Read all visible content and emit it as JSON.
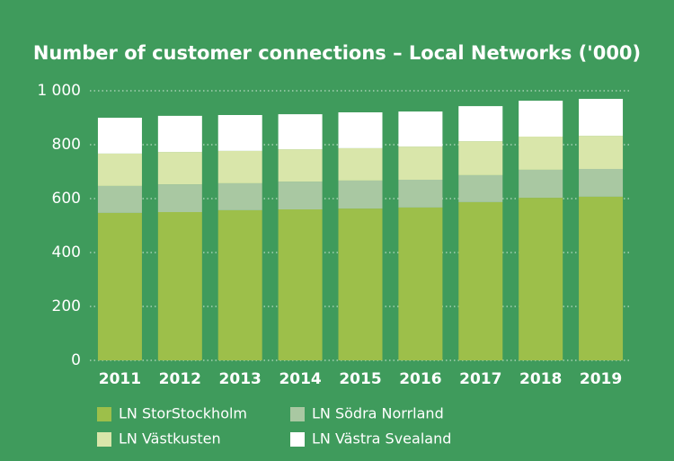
{
  "chart_data": {
    "type": "stacked_bar",
    "title": "Number of customer connections – Local Networks ('000)",
    "categories": [
      "2011",
      "2012",
      "2013",
      "2014",
      "2015",
      "2016",
      "2017",
      "2018",
      "2019"
    ],
    "series": [
      {
        "name": "LN StorStockholm",
        "color": "#9dbf4a",
        "values": [
          547,
          550,
          557,
          560,
          563,
          567,
          587,
          603,
          607
        ]
      },
      {
        "name": "LN Södra Norrland",
        "color": "#a9c8a2",
        "values": [
          100,
          103,
          100,
          103,
          104,
          103,
          100,
          104,
          103
        ]
      },
      {
        "name": "LN Västkusten",
        "color": "#d9e6aa",
        "values": [
          120,
          120,
          120,
          120,
          120,
          123,
          126,
          123,
          123
        ]
      },
      {
        "name": "LN Västra Svealand",
        "color": "#ffffff",
        "values": [
          133,
          134,
          133,
          130,
          133,
          130,
          130,
          133,
          137
        ]
      }
    ],
    "ylim": [
      0,
      1000
    ],
    "yticks": [
      0,
      200,
      400,
      600,
      800,
      {
        "value": 1000,
        "label": "1 000"
      }
    ],
    "grid": true
  }
}
